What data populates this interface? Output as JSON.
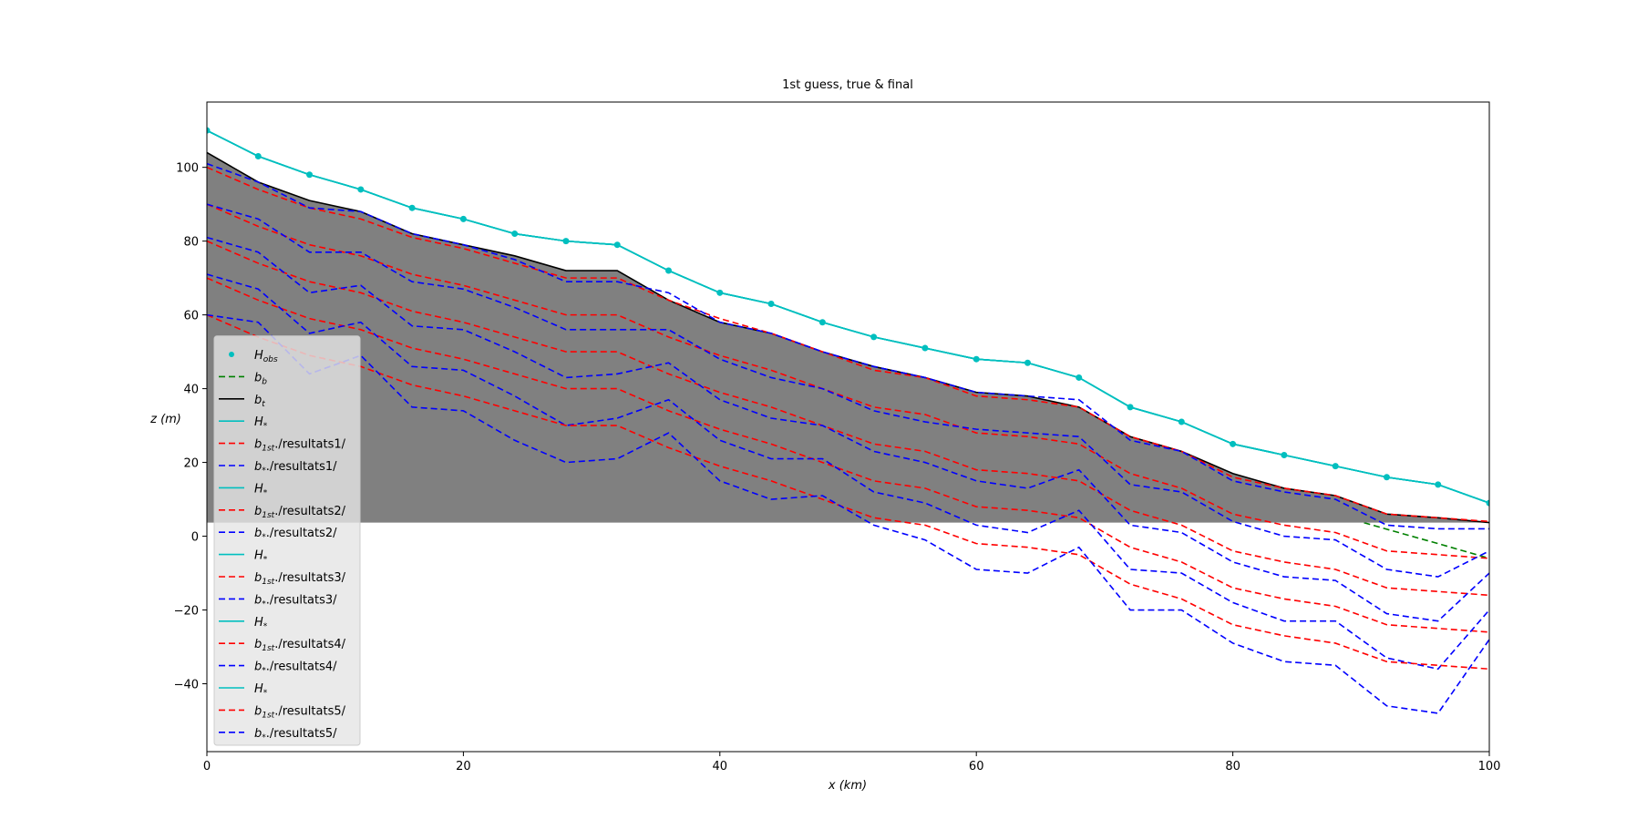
{
  "chart_data": {
    "type": "line",
    "title": "1st guess, true & final",
    "xlabel": "x (km)",
    "ylabel": "z (m)",
    "xlim": [
      0,
      100
    ],
    "ylim": [
      -58.4,
      117.7
    ],
    "xticks": [
      0,
      20,
      40,
      60,
      80,
      100
    ],
    "yticks": [
      {
        "value": -40,
        "label": "−40"
      },
      {
        "value": -20,
        "label": "−20"
      },
      0,
      20,
      40,
      60,
      80,
      100
    ],
    "legend": "lower left",
    "x": [
      0,
      4,
      8,
      12,
      16,
      20,
      24,
      28,
      32,
      36,
      40,
      44,
      48,
      52,
      56,
      60,
      64,
      68,
      72,
      76,
      80,
      84,
      88,
      92,
      96,
      100
    ],
    "series": [
      {
        "name": [
          "H",
          "obs"
        ],
        "color": "#00bfbf",
        "style": "dots",
        "values": [
          110,
          103,
          98,
          94,
          89,
          86,
          82,
          80,
          79,
          72,
          66,
          63,
          58,
          54,
          51,
          48,
          47,
          43,
          35,
          31,
          25,
          22,
          19,
          16,
          14,
          9
        ]
      },
      {
        "name": [
          "b",
          "b"
        ],
        "color": "#008000",
        "style": "dashed",
        "values": [
          93,
          89,
          85.1,
          81.1,
          77.2,
          73.2,
          69.2,
          65.3,
          61.3,
          57.4,
          53.4,
          49.4,
          45.5,
          41.5,
          37.6,
          33.6,
          29.6,
          25.7,
          21.7,
          17.8,
          13.8,
          9.8,
          5.9,
          1.9,
          -2,
          -6
        ]
      },
      {
        "name": [
          "b",
          "t"
        ],
        "color": "#000000",
        "style": "solid",
        "fill_color": "#808080",
        "values": [
          104,
          96,
          91,
          88,
          82,
          79,
          76,
          72,
          72,
          64,
          58,
          55,
          50,
          46,
          43,
          39,
          38,
          35,
          27,
          23,
          17,
          13,
          11,
          6,
          5,
          3.7
        ]
      },
      {
        "name": [
          "H",
          "*"
        ],
        "color": "#00bfbf",
        "style": "solid",
        "values": [
          110,
          103,
          98,
          94,
          89,
          86,
          82,
          80,
          79,
          72,
          66,
          63,
          58,
          54,
          51,
          48,
          47,
          43,
          35,
          31,
          25,
          22,
          19,
          16,
          14,
          9
        ]
      },
      {
        "name": [
          "b",
          "1st",
          "./resultats1/"
        ],
        "color": "#ff0000",
        "style": "dashed",
        "values": [
          100,
          94,
          89,
          86,
          81,
          78,
          74,
          70,
          70,
          64,
          59,
          55,
          50,
          45,
          43,
          38,
          37,
          35,
          27,
          23,
          16,
          13,
          11,
          6,
          5,
          4
        ]
      },
      {
        "name": [
          "b",
          "*",
          "./resultats1/"
        ],
        "color": "#0000ff",
        "style": "dashed",
        "values": [
          101,
          96,
          89,
          88,
          82,
          79,
          75,
          69,
          69,
          66,
          58,
          55,
          50,
          46,
          43,
          39,
          38,
          37,
          26,
          23,
          15,
          12,
          10,
          3,
          2,
          2
        ]
      },
      {
        "name": [
          "H",
          "*"
        ],
        "color": "#00bfbf",
        "style": "solid",
        "values": [
          110,
          103,
          98,
          94,
          89,
          86,
          82,
          80,
          79,
          72,
          66,
          63,
          58,
          54,
          51,
          48,
          47,
          43,
          35,
          31,
          25,
          22,
          19,
          16,
          14,
          9
        ]
      },
      {
        "name": [
          "b",
          "1st",
          "./resultats2/"
        ],
        "color": "#ff0000",
        "style": "dashed",
        "values": [
          90,
          84,
          79,
          76,
          71,
          68,
          64,
          60,
          60,
          54,
          49,
          45,
          40,
          35,
          33,
          28,
          27,
          25,
          17,
          13,
          6,
          3,
          1,
          -4,
          -5,
          -6
        ]
      },
      {
        "name": [
          "b",
          "*",
          "./resultats2/"
        ],
        "color": "#0000ff",
        "style": "dashed",
        "values": [
          90,
          86,
          77,
          77,
          69,
          67,
          62,
          56,
          56,
          56,
          48,
          43,
          40,
          34,
          31,
          29,
          28,
          27,
          14,
          12,
          4,
          0,
          -1,
          -9,
          -11,
          -4
        ]
      },
      {
        "name": [
          "H",
          "*"
        ],
        "color": "#00bfbf",
        "style": "solid",
        "values": [
          110,
          103,
          98,
          94,
          89,
          86,
          82,
          80,
          79,
          72,
          66,
          63,
          58,
          54,
          51,
          48,
          47,
          43,
          35,
          31,
          25,
          22,
          19,
          16,
          14,
          9
        ]
      },
      {
        "name": [
          "b",
          "1st",
          "./resultats3/"
        ],
        "color": "#ff0000",
        "style": "dashed",
        "values": [
          80,
          74,
          69,
          66,
          61,
          58,
          54,
          50,
          50,
          44,
          39,
          35,
          30,
          25,
          23,
          18,
          17,
          15,
          7,
          3,
          -4,
          -7,
          -9,
          -14,
          -15,
          -16
        ]
      },
      {
        "name": [
          "b",
          "*",
          "./resultats3/"
        ],
        "color": "#0000ff",
        "style": "dashed",
        "values": [
          81,
          77,
          66,
          68,
          57,
          56,
          50,
          43,
          44,
          47,
          37,
          32,
          30,
          23,
          20,
          15,
          13,
          18,
          3,
          1,
          -7,
          -11,
          -12,
          -21,
          -23,
          -10
        ]
      },
      {
        "name": [
          "H",
          "*"
        ],
        "color": "#00bfbf",
        "style": "solid",
        "values": [
          110,
          103,
          98,
          94,
          89,
          86,
          82,
          80,
          79,
          72,
          66,
          63,
          58,
          54,
          51,
          48,
          47,
          43,
          35,
          31,
          25,
          22,
          19,
          16,
          14,
          9
        ]
      },
      {
        "name": [
          "b",
          "1st",
          "./resultats4/"
        ],
        "color": "#ff0000",
        "style": "dashed",
        "values": [
          70,
          64,
          59,
          56,
          51,
          48,
          44,
          40,
          40,
          34,
          29,
          25,
          20,
          15,
          13,
          8,
          7,
          5,
          -3,
          -7,
          -14,
          -17,
          -19,
          -24,
          -25,
          -26
        ]
      },
      {
        "name": [
          "b",
          "*",
          "./resultats4/"
        ],
        "color": "#0000ff",
        "style": "dashed",
        "values": [
          71,
          67,
          55,
          58,
          46,
          45,
          38,
          30,
          32,
          37,
          26,
          21,
          21,
          12,
          9,
          3,
          1,
          7,
          -9,
          -10,
          -18,
          -23,
          -23,
          -33,
          -36,
          -20
        ]
      },
      {
        "name": [
          "H",
          "*"
        ],
        "color": "#00bfbf",
        "style": "solid",
        "values": [
          110,
          103,
          98,
          94,
          89,
          86,
          82,
          80,
          79,
          72,
          66,
          63,
          58,
          54,
          51,
          48,
          47,
          43,
          35,
          31,
          25,
          22,
          19,
          16,
          14,
          9
        ]
      },
      {
        "name": [
          "b",
          "1st",
          "./resultats5/"
        ],
        "color": "#ff0000",
        "style": "dashed",
        "values": [
          60,
          54,
          49,
          46,
          41,
          38,
          34,
          30,
          30,
          24,
          19,
          15,
          10,
          5,
          3,
          -2,
          -3,
          -5,
          -13,
          -17,
          -24,
          -27,
          -29,
          -34,
          -35,
          -36
        ]
      },
      {
        "name": [
          "b",
          "*",
          "./resultats5/"
        ],
        "color": "#0000ff",
        "style": "dashed",
        "values": [
          60,
          58,
          44,
          49,
          35,
          34,
          26,
          20,
          21,
          28,
          15,
          10,
          11,
          3,
          -1,
          -9,
          -10,
          -3,
          -20,
          -20,
          -29,
          -34,
          -35,
          -46,
          -48,
          -28
        ]
      }
    ]
  }
}
